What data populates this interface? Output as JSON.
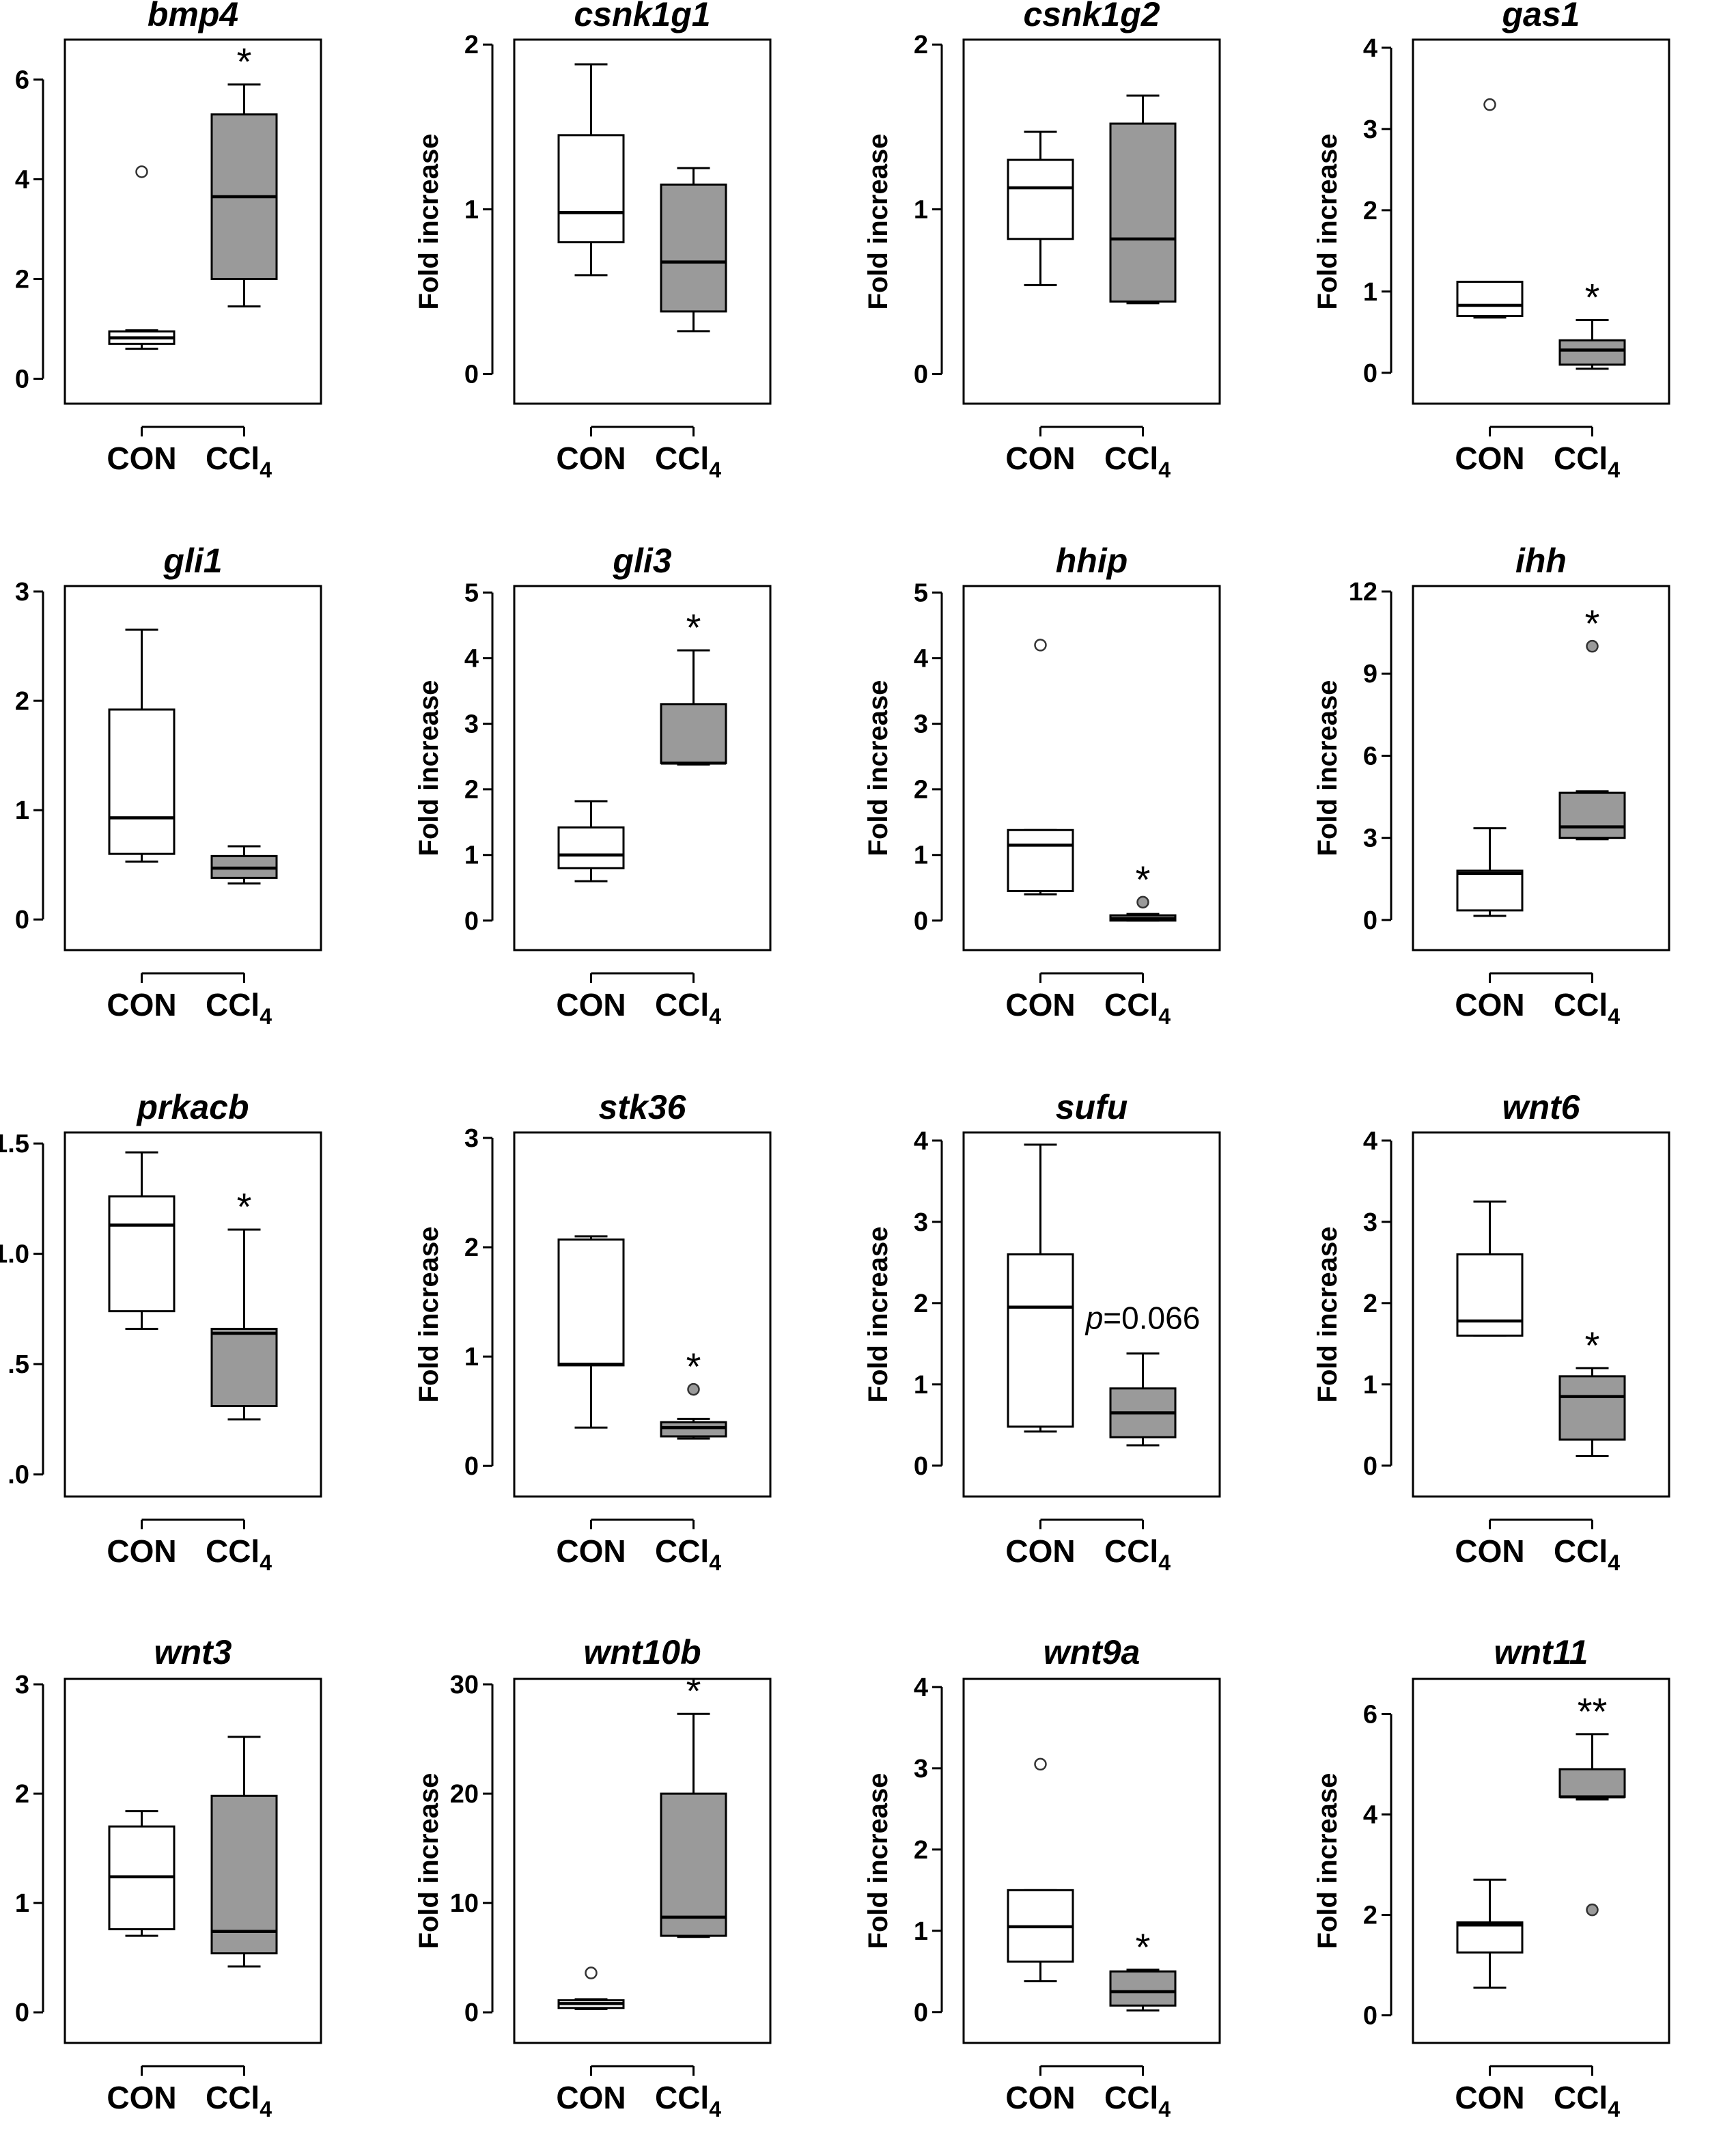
{
  "colors": {
    "con_fill": "#ffffff",
    "ccl4_fill": "#9a9a9a",
    "stroke": "#000000",
    "outlier_con_fill": "#ffffff",
    "outlier_ccl4_fill": "#9a9a9a"
  },
  "common": {
    "ylabel": "Fold increase",
    "con_label": "CON",
    "ccl4_label": "CCl",
    "ccl4_sub": "4"
  },
  "chart_data": [
    {
      "type": "box",
      "title": "bmp4",
      "ylim": [
        -0.5,
        6.8
      ],
      "ticks": [
        0,
        2,
        4,
        6
      ],
      "tick_labels": [
        "0",
        "2",
        "4",
        "6"
      ],
      "con": {
        "q1": 0.7,
        "median": 0.82,
        "q3": 0.95,
        "whisker_low": 0.6,
        "whisker_high": 0.97,
        "outliers": [
          4.15
        ]
      },
      "ccl4": {
        "q1": 2.0,
        "median": 3.65,
        "q3": 5.3,
        "whisker_low": 1.45,
        "whisker_high": 5.9,
        "outliers": []
      },
      "annotation": "*"
    },
    {
      "type": "box",
      "title": "csnk1g1",
      "ylim": [
        -0.18,
        2.03
      ],
      "ticks": [
        0,
        1,
        2
      ],
      "tick_labels": [
        "0",
        "1",
        "2"
      ],
      "con": {
        "q1": 0.8,
        "median": 0.98,
        "q3": 1.45,
        "whisker_low": 0.6,
        "whisker_high": 1.88,
        "outliers": []
      },
      "ccl4": {
        "q1": 0.38,
        "median": 0.68,
        "q3": 1.15,
        "whisker_low": 0.26,
        "whisker_high": 1.25,
        "outliers": []
      },
      "annotation": ""
    },
    {
      "type": "box",
      "title": "csnk1g2",
      "ylim": [
        -0.18,
        2.03
      ],
      "ticks": [
        0,
        1,
        2
      ],
      "tick_labels": [
        "0",
        "1",
        "2"
      ],
      "con": {
        "q1": 0.82,
        "median": 1.13,
        "q3": 1.3,
        "whisker_low": 0.54,
        "whisker_high": 1.47,
        "outliers": []
      },
      "ccl4": {
        "q1": 0.44,
        "median": 0.82,
        "q3": 1.52,
        "whisker_low": 0.43,
        "whisker_high": 1.69,
        "outliers": []
      },
      "annotation": ""
    },
    {
      "type": "box",
      "title": "gas1",
      "ylim": [
        -0.38,
        4.1
      ],
      "ticks": [
        0,
        1,
        2,
        3,
        4
      ],
      "tick_labels": [
        "0",
        "1",
        "2",
        "3",
        "4"
      ],
      "con": {
        "q1": 0.7,
        "median": 0.83,
        "q3": 1.12,
        "whisker_low": 0.68,
        "whisker_high": 1.12,
        "outliers": [
          3.3
        ]
      },
      "ccl4": {
        "q1": 0.1,
        "median": 0.28,
        "q3": 0.4,
        "whisker_low": 0.05,
        "whisker_high": 0.65,
        "outliers": []
      },
      "annotation": "*"
    },
    {
      "type": "box",
      "title": "gli1",
      "ylim": [
        -0.28,
        3.05
      ],
      "ticks": [
        0,
        1,
        2,
        3
      ],
      "tick_labels": [
        "0",
        "1",
        "2",
        "3"
      ],
      "con": {
        "q1": 0.6,
        "median": 0.93,
        "q3": 1.92,
        "whisker_low": 0.53,
        "whisker_high": 2.65,
        "outliers": []
      },
      "ccl4": {
        "q1": 0.38,
        "median": 0.47,
        "q3": 0.58,
        "whisker_low": 0.33,
        "whisker_high": 0.67,
        "outliers": []
      },
      "annotation": ""
    },
    {
      "type": "box",
      "title": "gli3",
      "ylim": [
        -0.45,
        5.1
      ],
      "ticks": [
        0,
        1,
        2,
        3,
        4,
        5
      ],
      "tick_labels": [
        "0",
        "1",
        "2",
        "3",
        "4",
        "5"
      ],
      "con": {
        "q1": 0.8,
        "median": 1.0,
        "q3": 1.42,
        "whisker_low": 0.6,
        "whisker_high": 1.82,
        "outliers": []
      },
      "ccl4": {
        "q1": 2.4,
        "median": 2.4,
        "q3": 3.3,
        "whisker_low": 2.38,
        "whisker_high": 4.12,
        "outliers": []
      },
      "annotation": "*"
    },
    {
      "type": "box",
      "title": "hhip",
      "ylim": [
        -0.45,
        5.1
      ],
      "ticks": [
        0,
        1,
        2,
        3,
        4,
        5
      ],
      "tick_labels": [
        "0",
        "1",
        "2",
        "3",
        "4",
        "5"
      ],
      "con": {
        "q1": 0.45,
        "median": 1.15,
        "q3": 1.38,
        "whisker_low": 0.4,
        "whisker_high": 1.38,
        "outliers": [
          4.2
        ]
      },
      "ccl4": {
        "q1": 0.0,
        "median": 0.03,
        "q3": 0.08,
        "whisker_low": 0.0,
        "whisker_high": 0.1,
        "outliers": [
          0.28
        ]
      },
      "annotation": "*"
    },
    {
      "type": "box",
      "title": "ihh",
      "ylim": [
        -1.1,
        12.2
      ],
      "ticks": [
        0,
        3,
        6,
        9,
        12
      ],
      "tick_labels": [
        "0",
        "3",
        "6",
        "9",
        "12"
      ],
      "con": {
        "q1": 0.35,
        "median": 1.7,
        "q3": 1.8,
        "whisker_low": 0.15,
        "whisker_high": 3.35,
        "outliers": []
      },
      "ccl4": {
        "q1": 3.0,
        "median": 3.4,
        "q3": 4.65,
        "whisker_low": 2.95,
        "whisker_high": 4.7,
        "outliers": [
          10.0
        ]
      },
      "annotation": "*"
    },
    {
      "type": "box",
      "title": "prkacb",
      "ylim": [
        -0.1,
        1.55
      ],
      "ticks": [
        0,
        0.5,
        1.0,
        1.5
      ],
      "tick_labels": [
        ".0",
        ".5",
        "1.0",
        "1.5"
      ],
      "con": {
        "q1": 0.74,
        "median": 1.13,
        "q3": 1.26,
        "whisker_low": 0.66,
        "whisker_high": 1.46,
        "outliers": []
      },
      "ccl4": {
        "q1": 0.31,
        "median": 0.64,
        "q3": 0.66,
        "whisker_low": 0.25,
        "whisker_high": 1.11,
        "outliers": []
      },
      "annotation": "*"
    },
    {
      "type": "box",
      "title": "stk36",
      "ylim": [
        -0.28,
        3.05
      ],
      "ticks": [
        0,
        1,
        2,
        3
      ],
      "tick_labels": [
        "0",
        "1",
        "2",
        "3"
      ],
      "con": {
        "q1": 0.92,
        "median": 0.93,
        "q3": 2.07,
        "whisker_low": 0.35,
        "whisker_high": 2.1,
        "outliers": []
      },
      "ccl4": {
        "q1": 0.27,
        "median": 0.35,
        "q3": 0.4,
        "whisker_low": 0.25,
        "whisker_high": 0.43,
        "outliers": [
          0.7
        ]
      },
      "annotation": "*"
    },
    {
      "type": "box",
      "title": "sufu",
      "ylim": [
        -0.38,
        4.1
      ],
      "ticks": [
        0,
        1,
        2,
        3,
        4
      ],
      "tick_labels": [
        "0",
        "1",
        "2",
        "3",
        "4"
      ],
      "con": {
        "q1": 0.48,
        "median": 1.95,
        "q3": 2.6,
        "whisker_low": 0.42,
        "whisker_high": 3.95,
        "outliers": []
      },
      "ccl4": {
        "q1": 0.35,
        "median": 0.65,
        "q3": 0.95,
        "whisker_low": 0.25,
        "whisker_high": 1.38,
        "outliers": []
      },
      "annotation": "",
      "p_prefix": "p",
      "p_value": "=0.066"
    },
    {
      "type": "box",
      "title": "wnt6",
      "ylim": [
        -0.38,
        4.1
      ],
      "ticks": [
        0,
        1,
        2,
        3,
        4
      ],
      "tick_labels": [
        "0",
        "1",
        "2",
        "3",
        "4"
      ],
      "con": {
        "q1": 1.6,
        "median": 1.78,
        "q3": 2.6,
        "whisker_low": 1.6,
        "whisker_high": 3.25,
        "outliers": []
      },
      "ccl4": {
        "q1": 0.32,
        "median": 0.85,
        "q3": 1.1,
        "whisker_low": 0.12,
        "whisker_high": 1.2,
        "outliers": []
      },
      "annotation": "*"
    },
    {
      "type": "box",
      "title": "wnt3",
      "ylim": [
        -0.28,
        3.05
      ],
      "ticks": [
        0,
        1,
        2,
        3
      ],
      "tick_labels": [
        "0",
        "1",
        "2",
        "3"
      ],
      "con": {
        "q1": 0.76,
        "median": 1.24,
        "q3": 1.7,
        "whisker_low": 0.7,
        "whisker_high": 1.84,
        "outliers": []
      },
      "ccl4": {
        "q1": 0.54,
        "median": 0.74,
        "q3": 1.98,
        "whisker_low": 0.42,
        "whisker_high": 2.52,
        "outliers": []
      },
      "annotation": ""
    },
    {
      "type": "box",
      "title": "wnt10b",
      "ylim": [
        -2.8,
        30.5
      ],
      "ticks": [
        0,
        10,
        20,
        30
      ],
      "tick_labels": [
        "0",
        "10",
        "20",
        "30"
      ],
      "con": {
        "q1": 0.4,
        "median": 0.8,
        "q3": 1.1,
        "whisker_low": 0.3,
        "whisker_high": 1.2,
        "outliers": [
          3.6
        ]
      },
      "ccl4": {
        "q1": 7.0,
        "median": 8.7,
        "q3": 20.0,
        "whisker_low": 6.9,
        "whisker_high": 27.3,
        "outliers": []
      },
      "annotation": "*"
    },
    {
      "type": "box",
      "title": "wnt9a",
      "ylim": [
        -0.38,
        4.1
      ],
      "ticks": [
        0,
        1,
        2,
        3,
        4
      ],
      "tick_labels": [
        "0",
        "1",
        "2",
        "3",
        "4"
      ],
      "con": {
        "q1": 0.62,
        "median": 1.05,
        "q3": 1.5,
        "whisker_low": 0.38,
        "whisker_high": 1.5,
        "outliers": [
          3.05
        ]
      },
      "ccl4": {
        "q1": 0.08,
        "median": 0.25,
        "q3": 0.5,
        "whisker_low": 0.02,
        "whisker_high": 0.52,
        "outliers": []
      },
      "annotation": "*"
    },
    {
      "type": "box",
      "title": "wnt11",
      "ylim": [
        -0.55,
        6.7
      ],
      "ticks": [
        0,
        2,
        4,
        6
      ],
      "tick_labels": [
        "0",
        "2",
        "4",
        "6"
      ],
      "con": {
        "q1": 1.25,
        "median": 1.8,
        "q3": 1.85,
        "whisker_low": 0.55,
        "whisker_high": 2.7,
        "outliers": []
      },
      "ccl4": {
        "q1": 4.35,
        "median": 4.35,
        "q3": 4.9,
        "whisker_low": 4.3,
        "whisker_high": 5.6,
        "outliers": [
          2.1
        ]
      },
      "annotation": "**"
    }
  ]
}
